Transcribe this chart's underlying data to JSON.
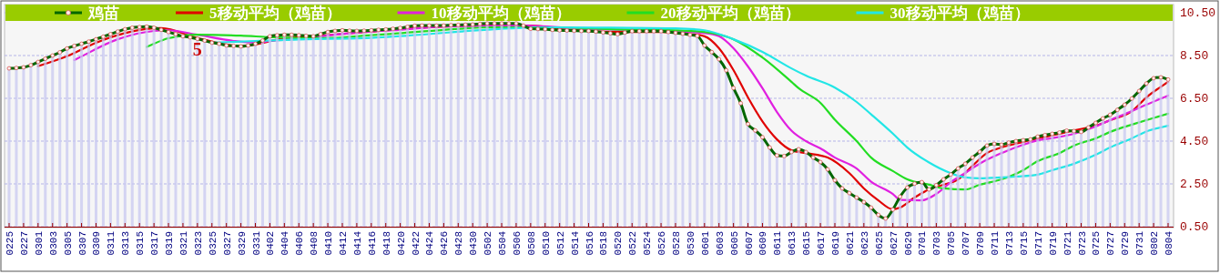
{
  "chart_data": {
    "type": "line",
    "x": [
      "--02-25",
      "--02-26",
      "--02-27",
      "--02-28",
      "--03-01",
      "--03-02",
      "--03-03",
      "--03-04",
      "--03-05",
      "--03-06",
      "--03-07",
      "--03-08",
      "--03-09",
      "--03-10",
      "--03-11",
      "--03-12",
      "--03-13",
      "--03-14",
      "--03-15",
      "--03-16",
      "--03-17",
      "--03-18",
      "--03-19",
      "--03-20",
      "--03-21",
      "--03-22",
      "--03-23",
      "--03-24",
      "--03-25",
      "--03-26",
      "--03-27",
      "--03-28",
      "--03-29",
      "--03-30",
      "--03-31",
      "--04-01",
      "--04-02",
      "--04-03",
      "--04-04",
      "--04-05",
      "--04-06",
      "--04-07",
      "--04-08",
      "--04-09",
      "--04-10",
      "--04-11",
      "--04-12",
      "--04-13",
      "--04-14",
      "--04-15",
      "--04-16",
      "--04-17",
      "--04-18",
      "--04-19",
      "--04-20",
      "--04-21",
      "--04-22",
      "--04-23",
      "--04-24",
      "--04-25",
      "--04-26",
      "--04-27",
      "--04-28",
      "--04-29",
      "--04-30",
      "--05-01",
      "--05-02",
      "--05-03",
      "--05-04",
      "--05-05",
      "--05-06",
      "--05-07",
      "--05-08",
      "--05-09",
      "--05-10",
      "--05-11",
      "--05-12",
      "--05-13",
      "--05-14",
      "--05-15",
      "--05-16",
      "--05-17",
      "--05-18",
      "--05-19",
      "--05-20",
      "--05-21",
      "--05-22",
      "--05-23",
      "--05-24",
      "--05-25",
      "--05-26",
      "--05-27",
      "--05-28",
      "--05-29",
      "--05-30",
      "--05-31",
      "--06-01",
      "--06-02",
      "--06-03",
      "--06-04",
      "--06-05",
      "--06-06",
      "--06-07",
      "--06-08",
      "--06-09",
      "--06-10",
      "--06-11",
      "--06-12",
      "--06-13",
      "--06-14",
      "--06-15",
      "--06-16",
      "--06-17",
      "--06-18",
      "--06-19",
      "--06-20",
      "--06-21",
      "--06-22",
      "--06-23",
      "--06-24",
      "--06-25",
      "--06-26",
      "--06-27",
      "--06-28",
      "--06-29",
      "--06-30",
      "--07-01",
      "--07-02",
      "--07-03",
      "--07-04",
      "--07-05",
      "--07-06",
      "--07-07",
      "--07-08",
      "--07-09",
      "--07-10",
      "--07-11",
      "--07-12",
      "--07-13",
      "--07-14",
      "--07-15",
      "--07-16",
      "--07-17",
      "--07-18",
      "--07-19",
      "--07-20",
      "--07-21",
      "--07-22",
      "--07-23",
      "--07-24",
      "--07-25",
      "--07-26",
      "--07-27",
      "--07-28",
      "--07-29",
      "--07-30",
      "--07-31",
      "--08-01",
      "--08-02",
      "--08-03",
      "--08-04"
    ],
    "xlim": [
      "--02-25",
      "--08-04"
    ],
    "xticks": [
      {
        "value": "--02-25",
        "label": "0225"
      },
      {
        "value": "--02-27",
        "label": "0227"
      },
      {
        "value": "--03-01",
        "label": "0301"
      },
      {
        "value": "--03-03",
        "label": "0303"
      },
      {
        "value": "--03-05",
        "label": "0305"
      },
      {
        "value": "--03-07",
        "label": "0307"
      },
      {
        "value": "--03-09",
        "label": "0309"
      },
      {
        "value": "--03-11",
        "label": "0311"
      },
      {
        "value": "--03-13",
        "label": "0313"
      },
      {
        "value": "--03-15",
        "label": "0315"
      },
      {
        "value": "--03-17",
        "label": "0317"
      },
      {
        "value": "--03-19",
        "label": "0319"
      },
      {
        "value": "--03-21",
        "label": "0321"
      },
      {
        "value": "--03-23",
        "label": "0323"
      },
      {
        "value": "--03-25",
        "label": "0325"
      },
      {
        "value": "--03-27",
        "label": "0327"
      },
      {
        "value": "--03-29",
        "label": "0329"
      },
      {
        "value": "--03-31",
        "label": "0331"
      },
      {
        "value": "--04-02",
        "label": "0402"
      },
      {
        "value": "--04-04",
        "label": "0404"
      },
      {
        "value": "--04-06",
        "label": "0406"
      },
      {
        "value": "--04-08",
        "label": "0408"
      },
      {
        "value": "--04-10",
        "label": "0410"
      },
      {
        "value": "--04-12",
        "label": "0412"
      },
      {
        "value": "--04-14",
        "label": "0414"
      },
      {
        "value": "--04-16",
        "label": "0416"
      },
      {
        "value": "--04-18",
        "label": "0418"
      },
      {
        "value": "--04-20",
        "label": "0420"
      },
      {
        "value": "--04-22",
        "label": "0422"
      },
      {
        "value": "--04-24",
        "label": "0424"
      },
      {
        "value": "--04-26",
        "label": "0426"
      },
      {
        "value": "--04-28",
        "label": "0428"
      },
      {
        "value": "--04-30",
        "label": "0430"
      },
      {
        "value": "--05-02",
        "label": "0502"
      },
      {
        "value": "--05-04",
        "label": "0504"
      },
      {
        "value": "--05-06",
        "label": "0506"
      },
      {
        "value": "--05-08",
        "label": "0508"
      },
      {
        "value": "--05-10",
        "label": "0510"
      },
      {
        "value": "--05-12",
        "label": "0512"
      },
      {
        "value": "--05-14",
        "label": "0514"
      },
      {
        "value": "--05-16",
        "label": "0516"
      },
      {
        "value": "--05-18",
        "label": "0518"
      },
      {
        "value": "--05-20",
        "label": "0520"
      },
      {
        "value": "--05-22",
        "label": "0522"
      },
      {
        "value": "--05-24",
        "label": "0524"
      },
      {
        "value": "--05-26",
        "label": "0526"
      },
      {
        "value": "--05-28",
        "label": "0528"
      },
      {
        "value": "--05-30",
        "label": "0530"
      },
      {
        "value": "--06-01",
        "label": "0601"
      },
      {
        "value": "--06-03",
        "label": "0603"
      },
      {
        "value": "--06-05",
        "label": "0605"
      },
      {
        "value": "--06-07",
        "label": "0607"
      },
      {
        "value": "--06-09",
        "label": "0609"
      },
      {
        "value": "--06-11",
        "label": "0611"
      },
      {
        "value": "--06-13",
        "label": "0613"
      },
      {
        "value": "--06-15",
        "label": "0615"
      },
      {
        "value": "--06-17",
        "label": "0617"
      },
      {
        "value": "--06-19",
        "label": "0619"
      },
      {
        "value": "--06-21",
        "label": "0621"
      },
      {
        "value": "--06-23",
        "label": "0623"
      },
      {
        "value": "--06-25",
        "label": "0625"
      },
      {
        "value": "--06-27",
        "label": "0627"
      },
      {
        "value": "--06-29",
        "label": "0629"
      },
      {
        "value": "--07-01",
        "label": "0701"
      },
      {
        "value": "--07-03",
        "label": "0703"
      },
      {
        "value": "--07-05",
        "label": "0705"
      },
      {
        "value": "--07-07",
        "label": "0707"
      },
      {
        "value": "--07-09",
        "label": "0709"
      },
      {
        "value": "--07-11",
        "label": "0711"
      },
      {
        "value": "--07-13",
        "label": "0713"
      },
      {
        "value": "--07-15",
        "label": "0715"
      },
      {
        "value": "--07-17",
        "label": "0717"
      },
      {
        "value": "--07-19",
        "label": "0719"
      },
      {
        "value": "--07-21",
        "label": "0721"
      },
      {
        "value": "--07-23",
        "label": "0723"
      },
      {
        "value": "--07-25",
        "label": "0725"
      },
      {
        "value": "--07-27",
        "label": "0727"
      },
      {
        "value": "--07-29",
        "label": "0729"
      },
      {
        "value": "--07-31",
        "label": "0731"
      },
      {
        "value": "--08-02",
        "label": "0802"
      },
      {
        "value": "--08-04",
        "label": "0804"
      }
    ],
    "ylim": [
      0.5,
      10.5
    ],
    "yticks": [
      {
        "value": 0.5,
        "label": "0.50"
      },
      {
        "value": 2.5,
        "label": "2.50"
      },
      {
        "value": 4.5,
        "label": "4.50"
      },
      {
        "value": 6.5,
        "label": "6.50"
      },
      {
        "value": 8.5,
        "label": "8.50"
      },
      {
        "value": 10.5,
        "label": "10.50"
      }
    ],
    "grid": "y",
    "legend": "top",
    "annotations": [
      {
        "text": "5",
        "x": "--03-23",
        "y": 8.75
      }
    ],
    "series": [
      {
        "type": "bar",
        "color": "#c8c8f0",
        "values": [
          7.9,
          7.92,
          7.95,
          8.05,
          8.2,
          8.35,
          8.5,
          8.65,
          8.83,
          8.95,
          9.05,
          9.15,
          9.26,
          9.38,
          9.5,
          9.62,
          9.73,
          9.8,
          9.83,
          9.85,
          9.8,
          9.7,
          9.6,
          9.5,
          9.4,
          9.35,
          9.28,
          9.2,
          9.1,
          9.05,
          8.97,
          8.95,
          8.93,
          8.97,
          9.05,
          9.2,
          9.4,
          9.45,
          9.47,
          9.47,
          9.45,
          9.42,
          9.4,
          9.5,
          9.6,
          9.65,
          9.68,
          9.66,
          9.65,
          9.66,
          9.68,
          9.7,
          9.72,
          9.75,
          9.79,
          9.84,
          9.89,
          9.9,
          9.9,
          9.9,
          9.9,
          9.92,
          9.93,
          9.94,
          9.95,
          9.98,
          10.0,
          10.0,
          10.0,
          10.0,
          10.0,
          9.9,
          9.75,
          9.74,
          9.73,
          9.7,
          9.68,
          9.67,
          9.66,
          9.65,
          9.65,
          9.62,
          9.58,
          9.54,
          9.5,
          9.57,
          9.64,
          9.64,
          9.64,
          9.64,
          9.64,
          9.6,
          9.56,
          9.52,
          9.47,
          9.42,
          8.97,
          8.66,
          8.33,
          7.81,
          6.98,
          6.27,
          5.3,
          5.0,
          4.68,
          4.2,
          3.83,
          3.8,
          3.99,
          4.12,
          3.99,
          3.73,
          3.52,
          3.18,
          2.67,
          2.29,
          2.07,
          1.86,
          1.65,
          1.39,
          1.05,
          0.88,
          1.3,
          1.9,
          2.33,
          2.51,
          2.58,
          2.24,
          2.44,
          2.71,
          2.94,
          3.22,
          3.44,
          3.73,
          4.0,
          4.29,
          4.37,
          4.33,
          4.43,
          4.5,
          4.54,
          4.58,
          4.71,
          4.78,
          4.84,
          4.9,
          4.99,
          4.97,
          4.93,
          5.14,
          5.35,
          5.56,
          5.73,
          5.96,
          6.2,
          6.49,
          6.84,
          7.19,
          7.44,
          7.48,
          7.38
        ]
      },
      {
        "name": "鸡苗",
        "color": "#006600",
        "marker": "circle",
        "values": [
          7.9,
          7.92,
          7.95,
          8.05,
          8.2,
          8.35,
          8.5,
          8.65,
          8.83,
          8.95,
          9.05,
          9.15,
          9.26,
          9.38,
          9.5,
          9.62,
          9.73,
          9.8,
          9.83,
          9.85,
          9.8,
          9.7,
          9.6,
          9.5,
          9.4,
          9.35,
          9.28,
          9.2,
          9.1,
          9.05,
          8.97,
          8.95,
          8.93,
          8.97,
          9.05,
          9.2,
          9.4,
          9.45,
          9.47,
          9.47,
          9.45,
          9.42,
          9.4,
          9.5,
          9.6,
          9.65,
          9.68,
          9.66,
          9.65,
          9.66,
          9.68,
          9.7,
          9.72,
          9.75,
          9.79,
          9.84,
          9.89,
          9.9,
          9.9,
          9.9,
          9.9,
          9.92,
          9.93,
          9.94,
          9.95,
          9.98,
          10.0,
          10.0,
          10.0,
          10.0,
          10.0,
          9.9,
          9.75,
          9.74,
          9.73,
          9.7,
          9.68,
          9.67,
          9.66,
          9.65,
          9.65,
          9.62,
          9.58,
          9.54,
          9.5,
          9.57,
          9.64,
          9.64,
          9.64,
          9.64,
          9.64,
          9.6,
          9.56,
          9.52,
          9.47,
          9.42,
          8.97,
          8.66,
          8.33,
          7.81,
          6.98,
          6.27,
          5.3,
          5.0,
          4.68,
          4.2,
          3.83,
          3.8,
          3.99,
          4.12,
          3.99,
          3.73,
          3.52,
          3.18,
          2.67,
          2.29,
          2.07,
          1.86,
          1.65,
          1.39,
          1.05,
          0.88,
          1.3,
          1.9,
          2.33,
          2.51,
          2.58,
          2.24,
          2.44,
          2.71,
          2.94,
          3.22,
          3.44,
          3.73,
          4.0,
          4.29,
          4.37,
          4.33,
          4.43,
          4.5,
          4.54,
          4.58,
          4.71,
          4.78,
          4.84,
          4.9,
          4.99,
          4.97,
          4.93,
          5.14,
          5.35,
          5.56,
          5.73,
          5.96,
          6.2,
          6.49,
          6.84,
          7.19,
          7.44,
          7.48,
          7.38
        ]
      },
      {
        "name": "5移动平均（鸡苗）",
        "color": "#e00000",
        "x": [
          "--03-01",
          "--03-05",
          "--03-09",
          "--03-13",
          "--03-18",
          "--03-23",
          "--03-29",
          "--04-04",
          "--04-10",
          "--04-16",
          "--04-22",
          "--05-02",
          "--05-08",
          "--05-12",
          "--05-20",
          "--05-26",
          "--05-30",
          "--06-01",
          "--06-03",
          "--06-05",
          "--06-07",
          "--06-09",
          "--06-11",
          "--06-13",
          "--06-15",
          "--06-18",
          "--06-21",
          "--06-23",
          "--06-25",
          "--06-27",
          "--06-28",
          "--06-30",
          "--07-02",
          "--07-04",
          "--07-06",
          "--07-08",
          "--07-10",
          "--07-12",
          "--07-15",
          "--07-17",
          "--07-20",
          "--07-22",
          "--07-25",
          "--07-27",
          "--07-30",
          "--08-01",
          "--08-04"
        ],
        "values": [
          8.0,
          8.47,
          9.1,
          9.55,
          9.78,
          9.32,
          8.94,
          9.3,
          9.45,
          9.62,
          9.78,
          9.9,
          9.9,
          9.75,
          9.6,
          9.6,
          9.5,
          9.4,
          8.84,
          7.82,
          6.54,
          5.42,
          4.58,
          4.07,
          3.94,
          3.73,
          3.0,
          2.29,
          1.73,
          1.31,
          1.39,
          1.86,
          2.24,
          2.46,
          2.71,
          3.35,
          3.94,
          4.2,
          4.46,
          4.63,
          4.84,
          5.0,
          5.22,
          5.48,
          5.9,
          6.54,
          7.27
        ]
      },
      {
        "name": "10移动平均（鸡苗）",
        "color": "#e020e0",
        "x": [
          "--03-06",
          "--03-12",
          "--03-17",
          "--03-19",
          "--03-23",
          "--03-28",
          "--03-31",
          "--04-02",
          "--04-07",
          "--04-11",
          "--04-15",
          "--04-19",
          "--04-26",
          "--05-06",
          "--05-16",
          "--05-26",
          "--06-01",
          "--06-03",
          "--06-05",
          "--06-07",
          "--06-09",
          "--06-11",
          "--06-13",
          "--06-15",
          "--06-17",
          "--06-19",
          "--06-22",
          "--06-24",
          "--06-27",
          "--06-28",
          "--07-01",
          "--07-03",
          "--07-05",
          "--07-07",
          "--07-09",
          "--07-12",
          "--07-15",
          "--07-17",
          "--07-19",
          "--07-22",
          "--07-25",
          "--07-27",
          "--07-30",
          "--08-01",
          "--08-04"
        ],
        "values": [
          8.29,
          9.26,
          9.65,
          9.68,
          9.47,
          9.18,
          9.1,
          9.18,
          9.31,
          9.47,
          9.6,
          9.68,
          9.85,
          9.9,
          9.75,
          9.65,
          9.55,
          9.4,
          8.84,
          7.99,
          6.97,
          5.86,
          4.99,
          4.5,
          4.16,
          3.73,
          3.22,
          2.6,
          2.03,
          1.75,
          1.73,
          2.03,
          2.58,
          3.01,
          3.45,
          3.94,
          4.33,
          4.54,
          4.64,
          4.84,
          5.18,
          5.48,
          5.9,
          6.2,
          6.63
        ]
      },
      {
        "name": "20移动平均（鸡苗）",
        "color": "#22dd22",
        "x": [
          "--03-16",
          "--03-19",
          "--03-23",
          "--03-29",
          "--04-02",
          "--04-07",
          "--04-11",
          "--04-15",
          "--04-19",
          "--04-26",
          "--05-03",
          "--05-11",
          "--05-19",
          "--05-28",
          "--06-01",
          "--06-05",
          "--06-09",
          "--06-13",
          "--06-14",
          "--06-17",
          "--06-19",
          "--06-22",
          "--06-24",
          "--06-27",
          "--06-29",
          "--07-02",
          "--07-04",
          "--07-07",
          "--07-09",
          "--07-12",
          "--07-15",
          "--07-17",
          "--07-20",
          "--07-22",
          "--07-25",
          "--07-27",
          "--07-30",
          "--08-01",
          "--08-04"
        ],
        "values": [
          8.9,
          9.31,
          9.47,
          9.43,
          9.36,
          9.31,
          9.33,
          9.43,
          9.52,
          9.7,
          9.82,
          9.82,
          9.73,
          9.68,
          9.6,
          9.26,
          8.41,
          7.27,
          6.97,
          6.29,
          5.5,
          4.5,
          3.73,
          3.1,
          2.71,
          2.46,
          2.29,
          2.24,
          2.46,
          2.71,
          3.14,
          3.56,
          3.94,
          4.29,
          4.63,
          4.93,
          5.27,
          5.48,
          5.78
        ]
      },
      {
        "name": "30移动平均（鸡苗）",
        "color": "#22e6e6",
        "x": [
          "--03-25",
          "--03-31",
          "--04-07",
          "--04-15",
          "--04-21",
          "--05-03",
          "--05-11",
          "--05-19",
          "--05-28",
          "--06-01",
          "--06-05",
          "--06-09",
          "--06-13",
          "--06-15",
          "--06-19",
          "--06-22",
          "--06-24",
          "--06-27",
          "--06-29",
          "--07-02",
          "--07-05",
          "--07-07",
          "--07-09",
          "--07-12",
          "--07-14",
          "--07-17",
          "--07-19",
          "--07-22",
          "--07-25",
          "--07-27",
          "--07-30",
          "--08-01",
          "--08-04"
        ],
        "values": [
          9.1,
          9.18,
          9.26,
          9.31,
          9.43,
          9.73,
          9.82,
          9.8,
          9.77,
          9.68,
          9.26,
          8.67,
          7.9,
          7.56,
          7.0,
          6.33,
          5.75,
          4.85,
          4.2,
          3.5,
          3.0,
          2.8,
          2.76,
          2.8,
          2.84,
          2.93,
          3.14,
          3.44,
          3.86,
          4.2,
          4.63,
          4.95,
          5.22
        ]
      }
    ]
  }
}
